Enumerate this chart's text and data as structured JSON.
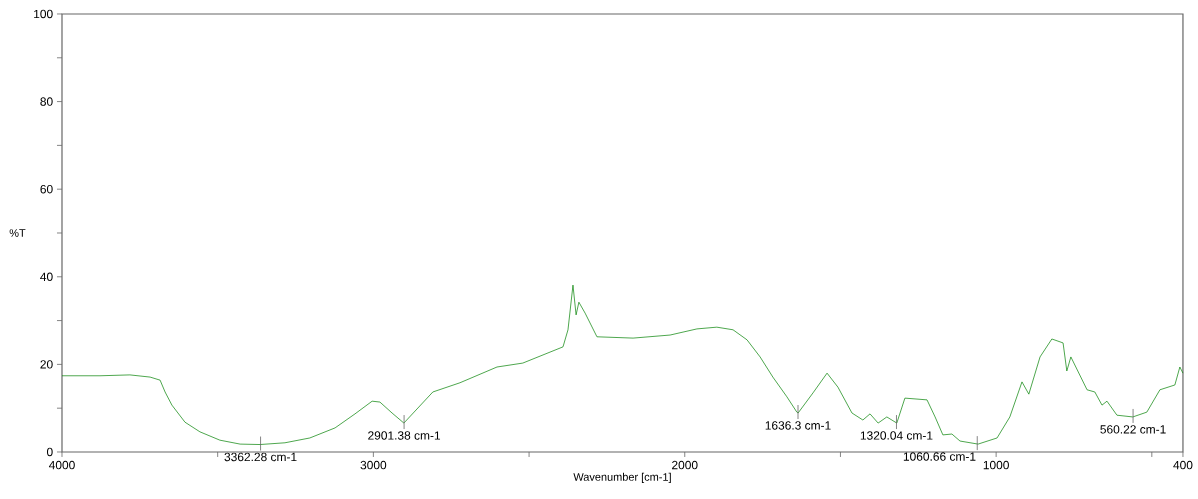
{
  "chart_data": {
    "type": "line",
    "xlabel": "Wavenumber [cm-1]",
    "ylabel": "%T",
    "xlim": [
      4000,
      400
    ],
    "ylim": [
      0,
      100
    ],
    "xticks": [
      4000,
      {
        "value": 3500,
        "label": null
      },
      3000,
      {
        "value": 2500,
        "label": null
      },
      2000,
      {
        "value": 1500,
        "label": null
      },
      1000,
      {
        "value": 500,
        "label": null
      },
      400
    ],
    "yticks": [
      0,
      {
        "value": 10,
        "label": null
      },
      20,
      {
        "value": 30,
        "label": null
      },
      40,
      {
        "value": 50,
        "label": null
      },
      60,
      {
        "value": 70,
        "label": null
      },
      80,
      {
        "value": 90,
        "label": null
      },
      100
    ],
    "marker": "none",
    "line_style": "solid",
    "series": [
      {
        "color": "#008000",
        "x": [
          4000,
          3878,
          3782,
          3717,
          3685,
          3669,
          3647,
          3605,
          3557,
          3493,
          3428,
          3364,
          3284,
          3204,
          3123,
          3059,
          3004,
          2979,
          2940,
          2902,
          2809,
          2722,
          2603,
          2520,
          2391,
          2375,
          2359,
          2349,
          2340,
          2320,
          2282,
          2166,
          2047,
          1961,
          1897,
          1845,
          1800,
          1758,
          1717,
          1672,
          1640,
          1636,
          1588,
          1543,
          1508,
          1463,
          1428,
          1405,
          1379,
          1351,
          1319,
          1293,
          1222,
          1196,
          1171,
          1142,
          1116,
          1058,
          997,
          956,
          917,
          895,
          859,
          821,
          785,
          773,
          760,
          708,
          683,
          660,
          644,
          612,
          561,
          516,
          474,
          426,
          410,
          400
        ],
        "values": [
          17.4,
          17.4,
          17.6,
          17.1,
          16.4,
          13.7,
          10.7,
          6.8,
          4.6,
          2.7,
          1.8,
          1.7,
          2.1,
          3.2,
          5.5,
          8.7,
          11.6,
          11.4,
          8.9,
          6.6,
          13.7,
          15.8,
          19.4,
          20.3,
          24.0,
          27.9,
          38.1,
          31.3,
          34.2,
          31.7,
          26.3,
          26.0,
          26.7,
          28.1,
          28.5,
          27.9,
          25.6,
          21.7,
          17.1,
          12.6,
          9.1,
          8.9,
          13.5,
          18.0,
          14.8,
          8.9,
          7.3,
          8.7,
          6.6,
          8.0,
          6.6,
          12.3,
          11.9,
          8.0,
          3.9,
          4.1,
          2.5,
          1.8,
          3.2,
          8.0,
          16.0,
          13.2,
          21.7,
          25.8,
          24.9,
          18.5,
          21.7,
          14.2,
          13.7,
          10.7,
          11.6,
          8.4,
          8.0,
          9.1,
          14.2,
          15.3,
          19.4,
          18.0
        ]
      }
    ],
    "annotations": [
      {
        "text": "3362.28 cm-1",
        "x": 3362.28,
        "y": 1.7
      },
      {
        "text": "2901.38 cm-1",
        "x": 2901.38,
        "y": 6.6
      },
      {
        "text": "1636.3 cm-1",
        "x": 1636.3,
        "y": 8.9
      },
      {
        "text": "1320.04 cm-1",
        "x": 1320.04,
        "y": 6.6
      },
      {
        "text": "1060.66 cm-1",
        "x": 1060.66,
        "y": 1.8
      },
      {
        "text": "560.22 cm-1",
        "x": 560.22,
        "y": 8.0
      }
    ]
  }
}
